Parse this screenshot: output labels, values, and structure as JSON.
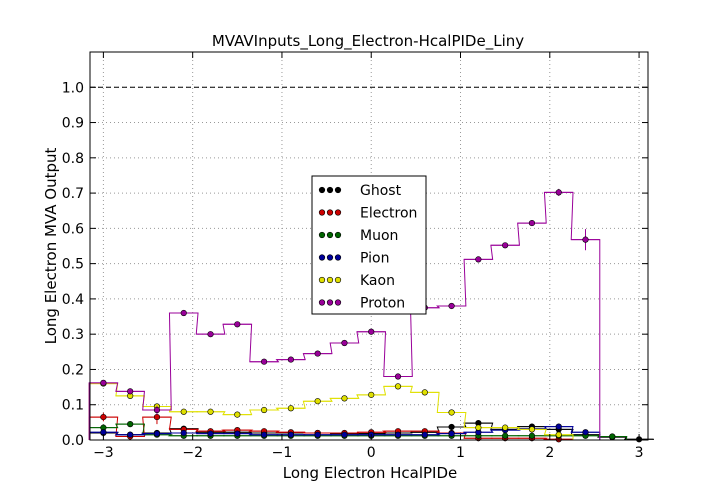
{
  "chart_data": {
    "type": "scatter",
    "title": "MVAVInputs_Long_Electron-HcalPIDe_Liny",
    "xlabel": "Long Electron HcalPIDe",
    "ylabel": "Long Electron MVA Output",
    "xlim": [
      -3.15,
      3.1
    ],
    "ylim": [
      0.0,
      1.1
    ],
    "xticks": [
      -3,
      -2,
      -1,
      0,
      1,
      2,
      3
    ],
    "xtick_labels": [
      "−3",
      "−2",
      "−1",
      "0",
      "1",
      "2",
      "3"
    ],
    "yticks": [
      0.0,
      0.1,
      0.2,
      0.3,
      0.4,
      0.5,
      0.6,
      0.7,
      0.8,
      0.9,
      1.0
    ],
    "ytick_labels": [
      "0.0",
      "0.1",
      "0.2",
      "0.3",
      "0.4",
      "0.5",
      "0.6",
      "0.7",
      "0.8",
      "0.9",
      "1.0"
    ],
    "grid": true,
    "reference_line": 1.0,
    "legend_position": "center",
    "bin_half_width": 0.16,
    "series": [
      {
        "name": "Ghost",
        "color": "#000000",
        "x": [
          -3.0,
          -2.7,
          -2.4,
          -2.1,
          -1.8,
          -1.5,
          -1.2,
          -0.9,
          -0.6,
          -0.3,
          0.0,
          0.3,
          0.6,
          0.9,
          1.2,
          1.5,
          1.8,
          2.1,
          2.4,
          2.7,
          3.0
        ],
        "y": [
          0.02,
          0.015,
          0.02,
          0.032,
          0.022,
          0.022,
          0.02,
          0.02,
          0.02,
          0.018,
          0.018,
          0.02,
          0.022,
          0.037,
          0.048,
          0.03,
          0.038,
          0.03,
          0.015,
          0.008,
          0.002
        ],
        "err": [
          0.005,
          0.004,
          0.004,
          0.004,
          0.003,
          0.003,
          0.003,
          0.003,
          0.003,
          0.003,
          0.003,
          0.003,
          0.003,
          0.004,
          0.005,
          0.004,
          0.005,
          0.005,
          0.004,
          0.003,
          0.002
        ]
      },
      {
        "name": "Electron",
        "color": "#cc0000",
        "x": [
          -3.0,
          -2.7,
          -2.4,
          -2.1,
          -1.8,
          -1.5,
          -1.2,
          -0.9,
          -0.6,
          -0.3,
          0.0,
          0.3,
          0.6,
          0.9,
          1.2,
          1.5,
          1.8,
          2.1
        ],
        "y": [
          0.065,
          0.01,
          0.065,
          0.03,
          0.025,
          0.028,
          0.025,
          0.022,
          0.02,
          0.02,
          0.022,
          0.025,
          0.025,
          0.02,
          0.005,
          0.005,
          0.005,
          0.002
        ],
        "err": [
          0.012,
          0.004,
          0.02,
          0.004,
          0.003,
          0.003,
          0.003,
          0.003,
          0.003,
          0.003,
          0.003,
          0.003,
          0.003,
          0.003,
          0.002,
          0.002,
          0.002,
          0.001
        ]
      },
      {
        "name": "Muon",
        "color": "#006400",
        "x": [
          -3.0,
          -2.7,
          -2.4,
          -2.1,
          -1.8,
          -1.5,
          -1.2,
          -0.9,
          -0.6,
          -0.3,
          0.0,
          0.3,
          0.6,
          0.9,
          1.2,
          1.5,
          1.8,
          2.1,
          2.4,
          2.7
        ],
        "y": [
          0.035,
          0.045,
          0.015,
          0.012,
          0.012,
          0.012,
          0.012,
          0.012,
          0.012,
          0.012,
          0.012,
          0.012,
          0.012,
          0.012,
          0.012,
          0.012,
          0.012,
          0.012,
          0.012,
          0.01
        ],
        "err": [
          0.005,
          0.005,
          0.003,
          0.003,
          0.003,
          0.003,
          0.003,
          0.003,
          0.003,
          0.003,
          0.003,
          0.003,
          0.003,
          0.003,
          0.003,
          0.003,
          0.003,
          0.003,
          0.003,
          0.003
        ]
      },
      {
        "name": "Pion",
        "color": "#000099",
        "x": [
          -3.0,
          -2.7,
          -2.4,
          -2.1,
          -1.8,
          -1.5,
          -1.2,
          -0.9,
          -0.6,
          -0.3,
          0.0,
          0.3,
          0.6,
          0.9,
          1.2,
          1.5,
          1.8,
          2.1,
          2.4
        ],
        "y": [
          0.022,
          0.015,
          0.018,
          0.02,
          0.018,
          0.018,
          0.015,
          0.015,
          0.015,
          0.015,
          0.015,
          0.015,
          0.015,
          0.018,
          0.022,
          0.028,
          0.032,
          0.038,
          0.022
        ],
        "err": [
          0.003,
          0.003,
          0.003,
          0.003,
          0.003,
          0.003,
          0.003,
          0.003,
          0.003,
          0.003,
          0.003,
          0.003,
          0.003,
          0.003,
          0.003,
          0.004,
          0.004,
          0.005,
          0.004
        ]
      },
      {
        "name": "Kaon",
        "color": "#e0e000",
        "x": [
          -3.0,
          -2.7,
          -2.4,
          -2.1,
          -1.8,
          -1.5,
          -1.2,
          -0.9,
          -0.6,
          -0.3,
          0.0,
          0.3,
          0.6,
          0.9,
          1.2,
          1.5,
          1.8,
          2.1
        ],
        "y": [
          0.16,
          0.125,
          0.095,
          0.08,
          0.08,
          0.072,
          0.085,
          0.09,
          0.11,
          0.118,
          0.128,
          0.152,
          0.135,
          0.078,
          0.035,
          0.035,
          0.03,
          0.015
        ],
        "err": [
          0.006,
          0.005,
          0.005,
          0.004,
          0.004,
          0.004,
          0.004,
          0.004,
          0.004,
          0.004,
          0.004,
          0.005,
          0.005,
          0.004,
          0.004,
          0.004,
          0.004,
          0.003
        ]
      },
      {
        "name": "Proton",
        "color": "#990099",
        "x": [
          -3.0,
          -2.7,
          -2.4,
          -2.1,
          -1.8,
          -1.5,
          -1.2,
          -0.9,
          -0.6,
          -0.3,
          0.0,
          0.3,
          0.6,
          0.9,
          1.2,
          1.5,
          1.8,
          2.1,
          2.4
        ],
        "y": [
          0.162,
          0.138,
          0.085,
          0.36,
          0.3,
          0.328,
          0.222,
          0.228,
          0.245,
          0.275,
          0.307,
          0.18,
          0.375,
          0.38,
          0.512,
          0.552,
          0.615,
          0.702,
          0.568
        ],
        "err": [
          0.008,
          0.008,
          0.012,
          0.006,
          0.006,
          0.006,
          0.005,
          0.005,
          0.005,
          0.005,
          0.006,
          0.006,
          0.006,
          0.007,
          0.007,
          0.007,
          0.008,
          0.01,
          0.03
        ]
      }
    ]
  }
}
